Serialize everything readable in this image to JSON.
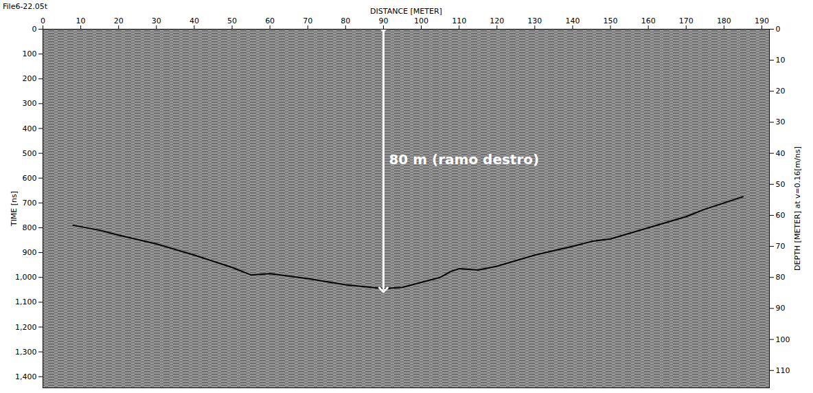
{
  "chart_data": {
    "type": "line",
    "title": "File6-22.05t",
    "x_label": "DISTANCE [METER]",
    "y_label": "TIME [ns]",
    "y2_label": "DEPTH [METER] at v=0.16[m/ns]",
    "xlim": [
      0,
      192
    ],
    "xticks": [
      0,
      10,
      20,
      30,
      40,
      50,
      60,
      70,
      80,
      90,
      100,
      110,
      120,
      130,
      140,
      150,
      160,
      170,
      180,
      190
    ],
    "ylim": [
      0,
      1445
    ],
    "yticks": [
      0,
      100,
      200,
      300,
      400,
      500,
      600,
      700,
      800,
      900,
      1000,
      1100,
      1200,
      1300,
      1400
    ],
    "y2lim": [
      0,
      115.6
    ],
    "y2ticks": [
      0,
      10,
      20,
      30,
      40,
      50,
      60,
      70,
      80,
      90,
      100,
      110
    ],
    "grid": false,
    "x": [
      8,
      15,
      20,
      30,
      40,
      50,
      55,
      60,
      70,
      80,
      90,
      95,
      100,
      105,
      108,
      110,
      115,
      120,
      130,
      140,
      145,
      150,
      160,
      170,
      175,
      180,
      185
    ],
    "series": [
      {
        "color": "#000000",
        "values": [
          790,
          810,
          830,
          865,
          910,
          960,
          990,
          985,
          1005,
          1030,
          1045,
          1040,
          1020,
          1000,
          975,
          965,
          970,
          955,
          910,
          875,
          855,
          845,
          800,
          755,
          725,
          700,
          675
        ]
      }
    ],
    "annotations": [
      {
        "text": "80 m (ramo destro)",
        "x": 90,
        "y_start": 0,
        "y_end": 1050,
        "color": "#ffffff"
      }
    ]
  }
}
